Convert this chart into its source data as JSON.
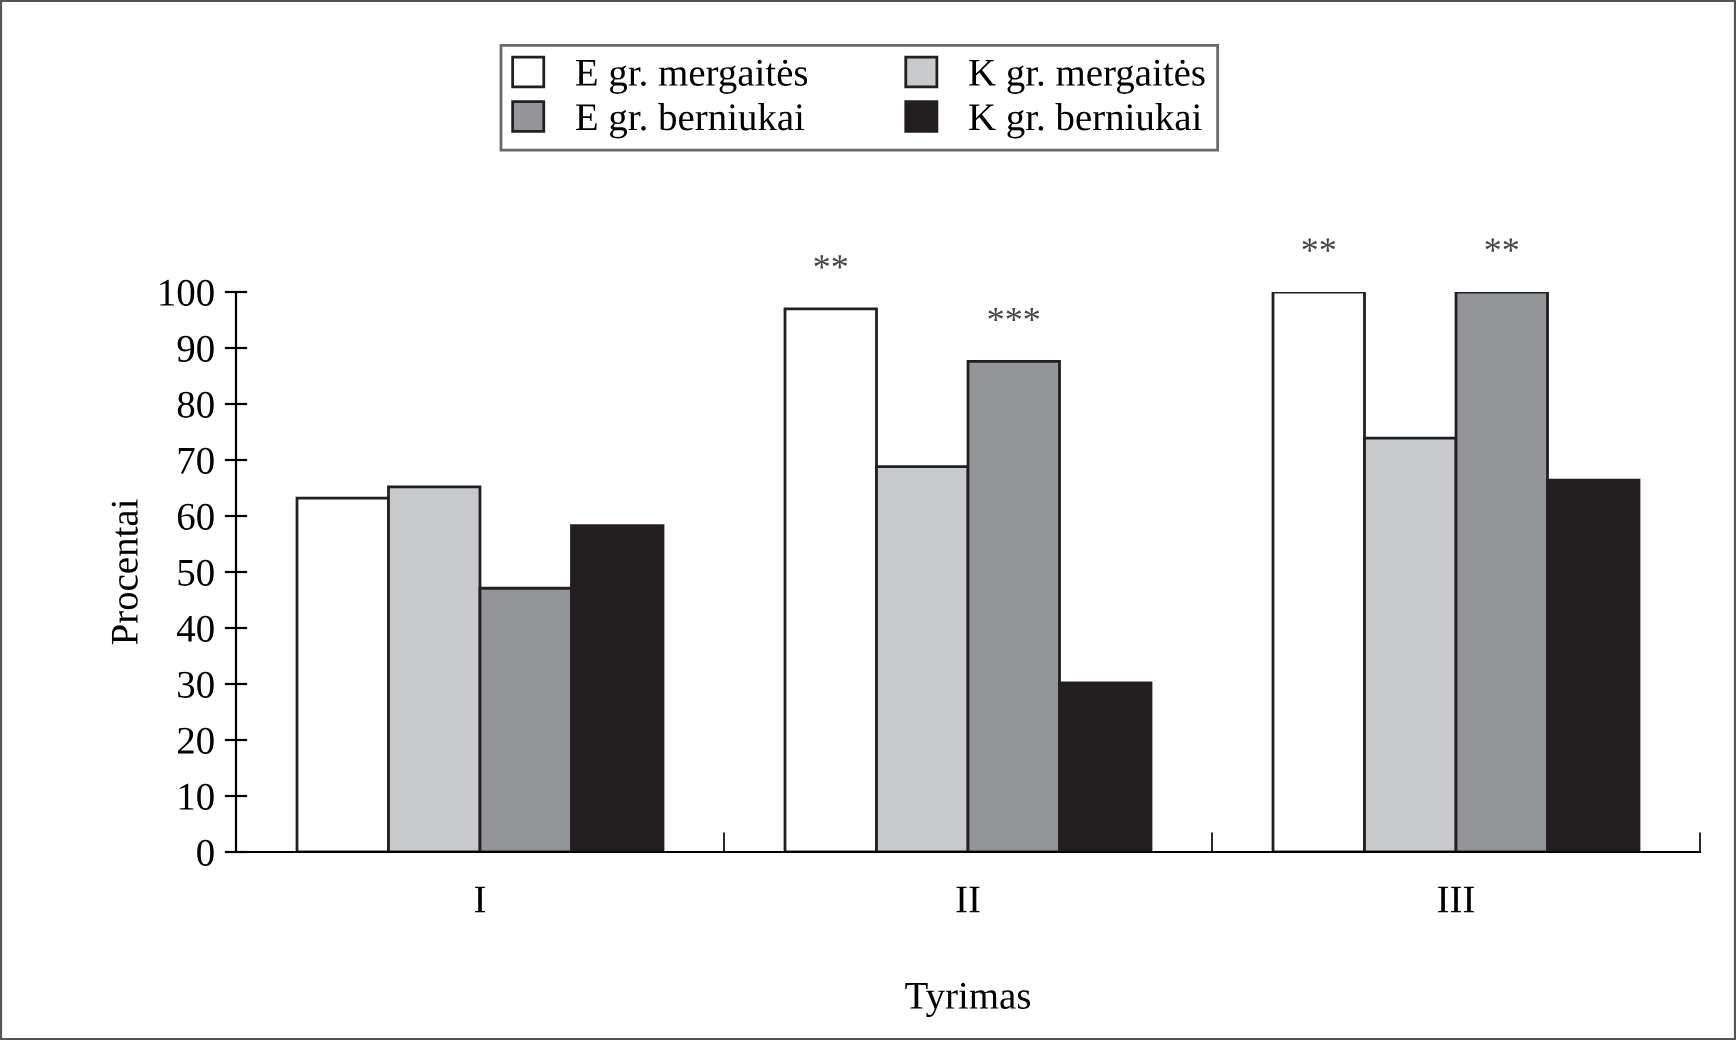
{
  "chart_data": {
    "type": "bar",
    "xlabel": "Tyrimas",
    "ylabel": "Procentai",
    "categories": [
      "I",
      "II",
      "III"
    ],
    "series": [
      {
        "name": "E gr. mergaitės",
        "color": "#ffffff",
        "values": [
          63.2,
          97.0,
          100
        ]
      },
      {
        "name": "K gr. mergaitės",
        "color": "#c8c9cb",
        "values": [
          65.2,
          68.8,
          73.9
        ]
      },
      {
        "name": "E gr. berniukai",
        "color": "#949599",
        "values": [
          47.1,
          87.6,
          100
        ]
      },
      {
        "name": "K gr. berniukai",
        "color": "#231f20",
        "values": [
          58.3,
          30.2,
          66.4
        ]
      }
    ],
    "annotations": [
      "**",
      "***",
      "**",
      "**"
    ],
    "ylim": [
      0,
      100
    ],
    "yticks": [
      0,
      10,
      20,
      30,
      40,
      50,
      60,
      70,
      80,
      90,
      100
    ],
    "grid": false,
    "legend": "top"
  }
}
